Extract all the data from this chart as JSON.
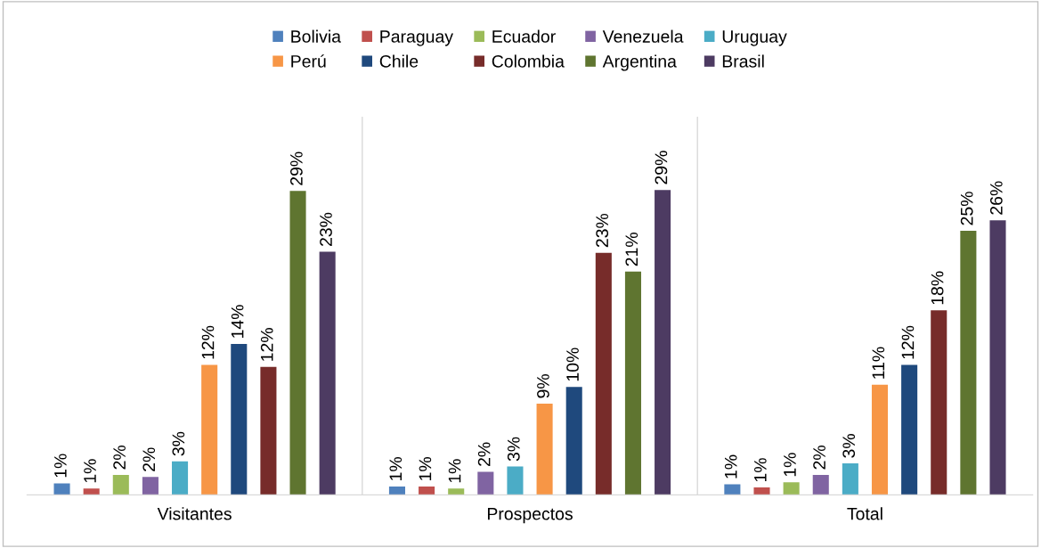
{
  "chart_data": {
    "type": "bar",
    "categories": [
      "Visitantes",
      "Prospectos",
      "Total"
    ],
    "series": [
      {
        "name": "Bolivia",
        "color": "#4f81bd",
        "values": [
          1.1,
          0.8,
          1.0
        ],
        "value_labels": [
          "1%",
          "1%",
          "1%"
        ]
      },
      {
        "name": "Paraguay",
        "color": "#c0504d",
        "values": [
          0.6,
          0.8,
          0.7
        ],
        "value_labels": [
          "1%",
          "1%",
          "1%"
        ]
      },
      {
        "name": "Ecuador",
        "color": "#9bbb59",
        "values": [
          1.9,
          0.6,
          1.2
        ],
        "value_labels": [
          "2%",
          "1%",
          "1%"
        ]
      },
      {
        "name": "Venezuela",
        "color": "#8064a2",
        "values": [
          1.7,
          2.2,
          1.9
        ],
        "value_labels": [
          "2%",
          "2%",
          "2%"
        ]
      },
      {
        "name": "Uruguay",
        "color": "#4bacc6",
        "values": [
          3.2,
          2.7,
          3.0
        ],
        "value_labels": [
          "3%",
          "3%",
          "3%"
        ]
      },
      {
        "name": "Perú",
        "color": "#f79646",
        "values": [
          12.4,
          8.7,
          10.5
        ],
        "value_labels": [
          "12%",
          "9%",
          "11%"
        ]
      },
      {
        "name": "Chile",
        "color": "#1f497d",
        "values": [
          14.4,
          10.3,
          12.4
        ],
        "value_labels": [
          "14%",
          "10%",
          "12%"
        ]
      },
      {
        "name": "Colombia",
        "color": "#772c2a",
        "values": [
          12.2,
          23.1,
          17.6
        ],
        "value_labels": [
          "12%",
          "23%",
          "18%"
        ]
      },
      {
        "name": "Argentina",
        "color": "#5f7530",
        "values": [
          29.0,
          21.3,
          25.2
        ],
        "value_labels": [
          "29%",
          "21%",
          "25%"
        ]
      },
      {
        "name": "Brasil",
        "color": "#4d3b62",
        "values": [
          23.2,
          29.1,
          26.2
        ],
        "value_labels": [
          "23%",
          "29%",
          "26%"
        ]
      }
    ],
    "legend": "top",
    "grid": false
  }
}
